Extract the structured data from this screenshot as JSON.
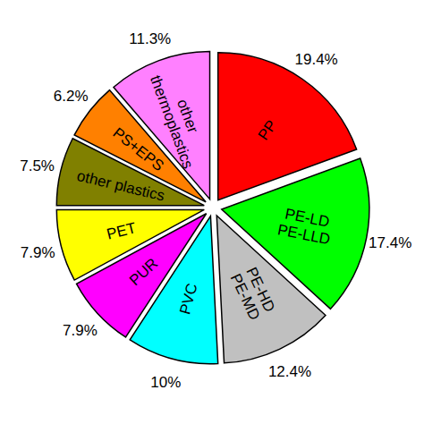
{
  "chart_data": {
    "type": "pie",
    "categories": [
      "PP",
      "PE-LD\nPE-LLD",
      "PE-HD\nPE-MD",
      "PVC",
      "PUR",
      "PET",
      "other plastics",
      "PS+EPS",
      "other\nthermoplastics"
    ],
    "values": [
      19.4,
      17.4,
      12.4,
      10,
      7.9,
      7.9,
      7.5,
      6.2,
      11.3
    ],
    "value_labels": [
      "19.4%",
      "17.4%",
      "12.4%",
      "10%",
      "7.9%",
      "7.9%",
      "7.5%",
      "6.2%",
      "11.3%"
    ],
    "colors": [
      "#ff0000",
      "#00ff00",
      "#c0c0c0",
      "#00ffff",
      "#ff00ff",
      "#ffff00",
      "#808000",
      "#ff8000",
      "#ff80ff"
    ],
    "data_labels": true
  }
}
